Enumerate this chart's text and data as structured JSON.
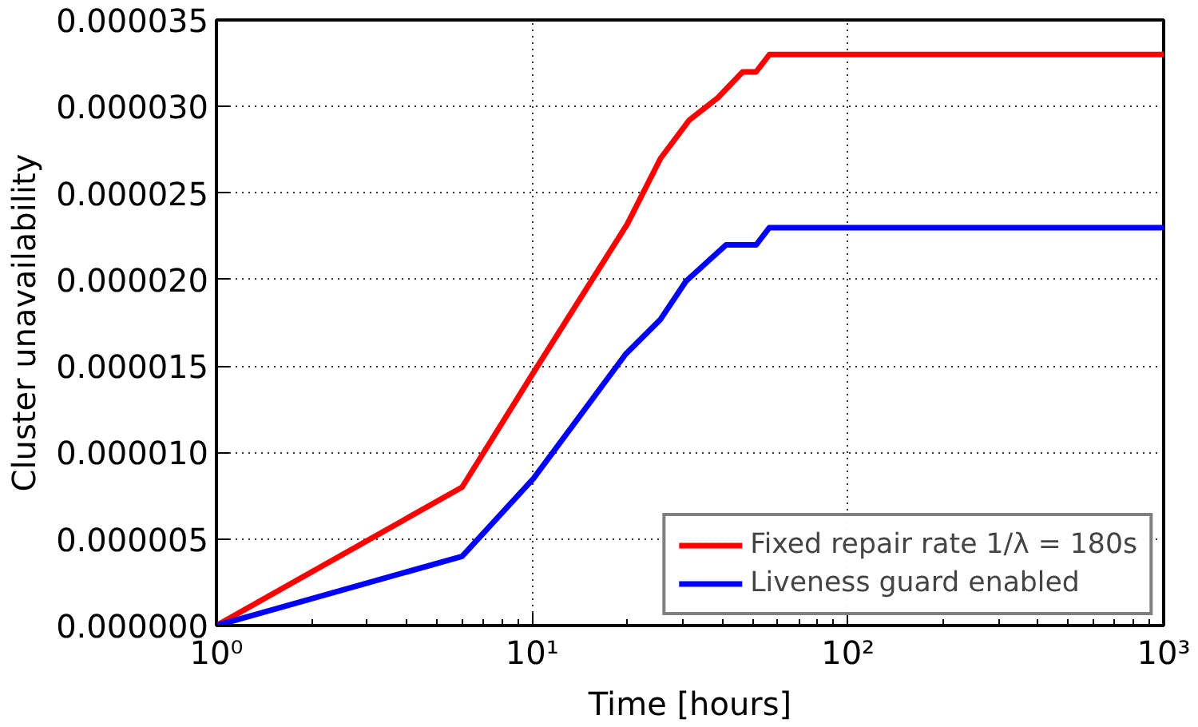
{
  "chart_data": {
    "type": "line",
    "xlabel": "Time [hours]",
    "ylabel": "Cluster unavailability",
    "log": "x",
    "xlim": [
      1,
      1000
    ],
    "xticks": [
      {
        "value": 1,
        "label": "10⁰"
      },
      {
        "value": 10,
        "label": "10¹"
      },
      {
        "value": 100,
        "label": "10²"
      },
      {
        "value": 1000,
        "label": "10³"
      }
    ],
    "ylim": [
      0,
      3.5e-05
    ],
    "yticks": [
      {
        "value": 0,
        "label": "0.000000"
      },
      {
        "value": 5e-06,
        "label": "0.000005"
      },
      {
        "value": 1e-05,
        "label": "0.000010"
      },
      {
        "value": 1.5e-05,
        "label": "0.000015"
      },
      {
        "value": 2e-05,
        "label": "0.000020"
      },
      {
        "value": 2.5e-05,
        "label": "0.000025"
      },
      {
        "value": 3e-05,
        "label": "0.000030"
      },
      {
        "value": 3.5e-05,
        "label": "0.000035"
      }
    ],
    "grid": true,
    "legend": "bottom right",
    "line_style": "solid",
    "series": [
      {
        "name": "Fixed repair rate 1/λ = 180s",
        "color": "#ff0000",
        "x": [
          1,
          6,
          10,
          20,
          25.5,
          31.4,
          38.7,
          46.4,
          51.2,
          56.4,
          1000
        ],
        "values": [
          0,
          8e-06,
          1.45e-05,
          2.32e-05,
          2.7e-05,
          2.92e-05,
          3.05e-05,
          3.2e-05,
          3.2e-05,
          3.3e-05,
          3.3e-05
        ]
      },
      {
        "name": "Liveness guard enabled",
        "color": "#0000ff",
        "x": [
          1,
          6,
          10.1,
          19.8,
          25.5,
          30.7,
          41.1,
          51.2,
          56.4,
          1000
        ],
        "values": [
          0,
          4e-06,
          8.5e-06,
          1.57e-05,
          1.77e-05,
          1.99e-05,
          2.2e-05,
          2.2e-05,
          2.3e-05,
          2.3e-05
        ]
      }
    ]
  }
}
